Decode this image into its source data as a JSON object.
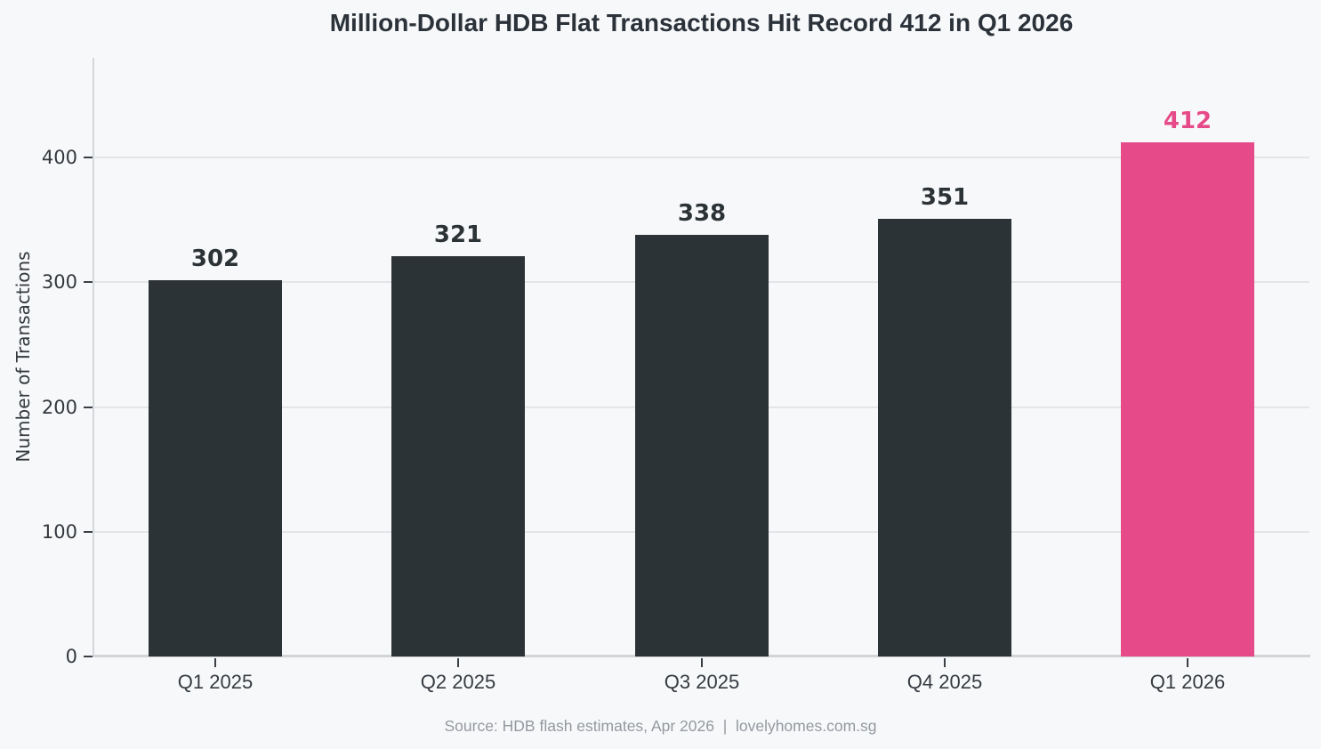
{
  "title": "Million-Dollar HDB Flat Transactions Hit Record 412 in Q1 2026",
  "y_axis_title": "Number of Transactions",
  "footer": {
    "source_text": "Source: HDB flash estimates, Apr 2026  |  lovelyhomes.com.sg"
  },
  "chart_data": {
    "type": "bar",
    "title": "Million-Dollar HDB Flat Transactions Hit Record 412 in Q1 2026",
    "categories": [
      "Q1 2025",
      "Q2 2025",
      "Q3 2025",
      "Q4 2025",
      "Q1 2026"
    ],
    "values": [
      302,
      321,
      338,
      351,
      412
    ],
    "bar_labels": [
      "302",
      "321",
      "338",
      "351",
      "412"
    ],
    "highlight_index": 4,
    "xlabel": "",
    "ylabel": "Number of Transactions",
    "yticks": [
      0,
      100,
      200,
      300,
      400
    ],
    "ylim": [
      0,
      480
    ],
    "grid": "horizontal",
    "legend": "none",
    "colors": {
      "bar": "#2c3336",
      "highlight": "#e74a88",
      "background": "#f7f8fa",
      "gridline": "#e3e5e8",
      "axis_spine": "#d4d7da",
      "tick": "#3a4046",
      "value_label_dark": "#2c3336",
      "value_label_highlight": "#e74a88",
      "footer_text": "#94999f"
    }
  }
}
